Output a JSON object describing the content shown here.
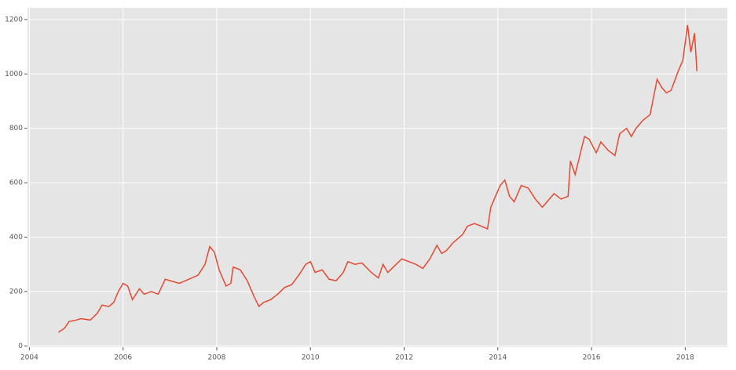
{
  "chart_data": {
    "type": "line",
    "color": "#e24a33",
    "grid": true,
    "x": [
      2004.62,
      2004.75,
      2004.85,
      2005.0,
      2005.1,
      2005.3,
      2005.45,
      2005.55,
      2005.7,
      2005.8,
      2005.9,
      2006.0,
      2006.1,
      2006.2,
      2006.35,
      2006.45,
      2006.6,
      2006.75,
      2006.9,
      2007.0,
      2007.2,
      2007.4,
      2007.6,
      2007.75,
      2007.85,
      2007.95,
      2008.05,
      2008.2,
      2008.3,
      2008.35,
      2008.5,
      2008.65,
      2008.8,
      2008.9,
      2009.0,
      2009.15,
      2009.3,
      2009.45,
      2009.6,
      2009.75,
      2009.9,
      2010.0,
      2010.1,
      2010.25,
      2010.4,
      2010.55,
      2010.7,
      2010.8,
      2010.95,
      2011.1,
      2011.3,
      2011.45,
      2011.55,
      2011.65,
      2011.8,
      2011.95,
      2012.1,
      2012.25,
      2012.4,
      2012.55,
      2012.7,
      2012.8,
      2012.9,
      2013.05,
      2013.25,
      2013.35,
      2013.5,
      2013.65,
      2013.78,
      2013.85,
      2013.95,
      2014.05,
      2014.15,
      2014.25,
      2014.35,
      2014.5,
      2014.65,
      2014.8,
      2014.95,
      2015.05,
      2015.2,
      2015.35,
      2015.5,
      2015.55,
      2015.65,
      2015.75,
      2015.85,
      2015.95,
      2016.1,
      2016.2,
      2016.35,
      2016.5,
      2016.6,
      2016.75,
      2016.85,
      2016.95,
      2017.1,
      2017.25,
      2017.4,
      2017.5,
      2017.6,
      2017.7,
      2017.85,
      2017.95,
      2018.05,
      2018.12,
      2018.2,
      2018.25
    ],
    "values": [
      50,
      65,
      90,
      95,
      100,
      95,
      120,
      150,
      145,
      160,
      200,
      230,
      220,
      170,
      210,
      190,
      200,
      190,
      245,
      240,
      230,
      245,
      260,
      300,
      365,
      345,
      280,
      220,
      230,
      290,
      280,
      240,
      180,
      145,
      160,
      170,
      190,
      215,
      225,
      260,
      300,
      310,
      270,
      280,
      245,
      240,
      270,
      310,
      300,
      305,
      270,
      250,
      300,
      270,
      295,
      320,
      310,
      300,
      285,
      320,
      370,
      340,
      350,
      380,
      410,
      440,
      450,
      440,
      430,
      510,
      550,
      590,
      610,
      550,
      530,
      590,
      580,
      540,
      510,
      530,
      560,
      540,
      550,
      680,
      630,
      700,
      770,
      760,
      710,
      750,
      720,
      700,
      780,
      800,
      770,
      800,
      830,
      850,
      980,
      950,
      930,
      940,
      1010,
      1050,
      1180,
      1080,
      1150,
      1010
    ],
    "xlim": [
      2003.96,
      2018.9
    ],
    "xticks": [
      2004,
      2006,
      2008,
      2010,
      2012,
      2014,
      2016,
      2018
    ],
    "ylim": [
      -5,
      1243
    ],
    "yticks": [
      0,
      200,
      400,
      600,
      800,
      1000,
      1200
    ]
  }
}
